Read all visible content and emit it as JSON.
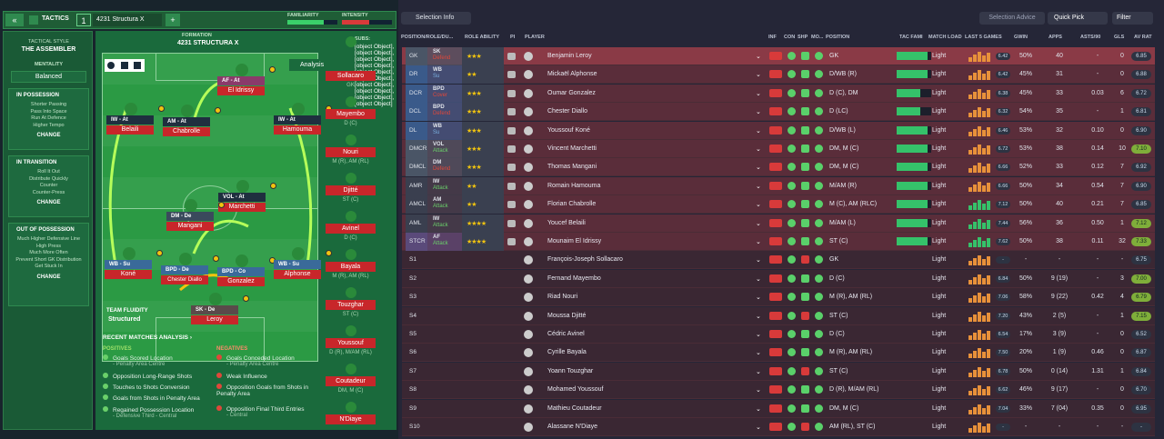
{
  "toolbar": {
    "back": "«",
    "tactics": "TACTICS",
    "slot": "1",
    "tactic_name": "4231 Structura X",
    "add": "+",
    "familiarity": "FAMILIARITY",
    "intensity": "INTENSITY"
  },
  "sidebar": {
    "style_label": "TACTICAL STYLE",
    "style": "THE ASSEMBLER",
    "mentality_label": "MENTALITY",
    "mentality": "Balanced",
    "in_possession": {
      "title": "IN POSSESSION",
      "items": [
        "Shorter Passing",
        "Pass Into Space",
        "Run At Defence",
        "Higher Tempo"
      ],
      "change": "CHANGE"
    },
    "in_transition": {
      "title": "IN TRANSITION",
      "items": [
        "Roll It Out",
        "Distribute Quickly",
        "Counter",
        "Counter-Press"
      ],
      "change": "CHANGE"
    },
    "out_of_possession": {
      "title": "OUT OF POSSESSION",
      "items": [
        "Much Higher Defensive Line",
        "High Press",
        "Much More Often",
        "Prevent Short GK Distribution",
        "Get Stuck In"
      ],
      "change": "CHANGE"
    }
  },
  "pitch": {
    "formation_label": "FORMATION",
    "formation": "4231 STRUCTURA X",
    "subs_label": "SUBS:",
    "subs": [
      {
        "name": "Sollacaro",
        "pos": "GK"
      },
      {
        "name": "Mayembo",
        "pos": "D (C)"
      },
      {
        "name": "Nouri",
        "pos": "M (R), AM (RL)"
      },
      {
        "name": "Djitté",
        "pos": "ST (C)"
      },
      {
        "name": "Avinel",
        "pos": "D (C)"
      },
      {
        "name": "Bayala",
        "pos": "M (R), AM (RL)"
      },
      {
        "name": "Touzghar",
        "pos": "ST (C)"
      },
      {
        "name": "Youssouf",
        "pos": "D (R), M/AM (RL)"
      },
      {
        "name": "Coutadeur",
        "pos": "DM, M (C)"
      },
      {
        "name": "N'Diaye",
        "pos": ""
      }
    ],
    "analysis": "Analysis",
    "fluidity_label": "TEAM FLUIDITY",
    "fluidity": "Structured",
    "players": [
      {
        "role": "AF - At",
        "name": "El Idrissy"
      },
      {
        "role": "IW - At",
        "name": "Belaili"
      },
      {
        "role": "AM - At",
        "name": "Chabrolle"
      },
      {
        "role": "IW - At",
        "name": "Hamouma"
      },
      {
        "role": "VOL - At",
        "name": "Marchetti"
      },
      {
        "role": "DM - De",
        "name": "Mangani"
      },
      {
        "role": "WB - Su",
        "name": "Koné"
      },
      {
        "role": "BPD - De",
        "name": "Chester Diallo"
      },
      {
        "role": "BPD - Co",
        "name": "Gonzalez"
      },
      {
        "role": "WB - Su",
        "name": "Alphonse"
      },
      {
        "role": "SK - De",
        "name": "Leroy"
      }
    ]
  },
  "recent": {
    "title": "RECENT MATCHES ANALYSIS ›",
    "positives_label": "POSITIVES",
    "negatives_label": "NEGATIVES",
    "positives": [
      {
        "t": "Goals Scored Location",
        "s": "- Penalty Area Centre"
      },
      {
        "t": "Opposition Long-Range Shots",
        "s": ""
      },
      {
        "t": "Touches to Shots Conversion",
        "s": ""
      },
      {
        "t": "Goals from Shots in Penalty Area",
        "s": ""
      },
      {
        "t": "Regained Possession Location",
        "s": "- Defensive Third - Central"
      }
    ],
    "negatives": [
      {
        "t": "Goals Conceded Location",
        "s": "- Penalty Area Centre"
      },
      {
        "t": "Weak Influence",
        "s": ""
      },
      {
        "t": "Opposition Goals from Shots in Penalty Area",
        "s": ""
      },
      {
        "t": "Opposition Final Third Entries",
        "s": "- Central"
      }
    ]
  },
  "right_toolbar": {
    "selection_info": "Selection Info",
    "selection_advice": "Selection Advice",
    "quick_pick": "Quick Pick",
    "filter": "Filter"
  },
  "headers": {
    "posrole": "POSITION/ROLE/DU...",
    "role_ability": "ROLE ABILITY",
    "pi": "PI",
    "player": "PLAYER",
    "inf": "INF",
    "con": "CON",
    "shp": "SHP",
    "mo": "MO...",
    "position": "POSITION",
    "tac_fam": "TAC FAMI",
    "match_load": "MATCH LOAD",
    "last5": "LAST 5 GAMES",
    "gwin": "GWIN",
    "apps": "APPS",
    "asts90": "ASTS/90",
    "gls": "GLS",
    "avrat": "AV RAT"
  },
  "rows": [
    {
      "slot": "GK",
      "role": "SK",
      "duty": "Defend",
      "stars": "★★★",
      "name": "Benjamin Leroy",
      "pos": "GK",
      "load": "Light",
      "f": "6.42",
      "gwin": "50%",
      "apps": "40",
      "asts": "-",
      "gls": "0",
      "av": "6.85",
      "av_g": false
    },
    {
      "slot": "DR",
      "role": "WB",
      "duty": "Su",
      "stars": "★★",
      "name": "Mickaël Alphonse",
      "pos": "D/WB (R)",
      "load": "Light",
      "f": "6.42",
      "gwin": "45%",
      "apps": "31",
      "asts": "-",
      "gls": "0",
      "av": "6.88",
      "av_g": false
    },
    {
      "slot": "DCR",
      "role": "BPD",
      "duty": "Cover",
      "stars": "★★★",
      "name": "Oumar Gonzalez",
      "pos": "D (C), DM",
      "load": "Light",
      "f": "6.38",
      "gwin": "45%",
      "apps": "33",
      "asts": "0.03",
      "gls": "6",
      "av": "6.72",
      "av_g": false
    },
    {
      "slot": "DCL",
      "role": "BPD",
      "duty": "Defend",
      "stars": "★★★",
      "name": "Chester Diallo",
      "pos": "D (LC)",
      "load": "Light",
      "f": "6.32",
      "gwin": "54%",
      "apps": "35",
      "asts": "-",
      "gls": "1",
      "av": "6.81",
      "av_g": false
    },
    {
      "slot": "DL",
      "role": "WB",
      "duty": "Su",
      "stars": "★★★",
      "name": "Youssouf Koné",
      "pos": "D/WB (L)",
      "load": "Light",
      "f": "6.46",
      "gwin": "53%",
      "apps": "32",
      "asts": "0.10",
      "gls": "0",
      "av": "6.90",
      "av_g": false
    },
    {
      "slot": "DMCR",
      "role": "VOL",
      "duty": "Attack",
      "stars": "★★★",
      "name": "Vincent Marchetti",
      "pos": "DM, M (C)",
      "load": "Light",
      "f": "6.72",
      "gwin": "53%",
      "apps": "38",
      "asts": "0.14",
      "gls": "10",
      "av": "7.10",
      "av_g": true
    },
    {
      "slot": "DMCL",
      "role": "DM",
      "duty": "Defend",
      "stars": "★★★",
      "name": "Thomas Mangani",
      "pos": "DM, M (C)",
      "load": "Light",
      "f": "6.66",
      "gwin": "52%",
      "apps": "33",
      "asts": "0.12",
      "gls": "7",
      "av": "6.92",
      "av_g": false
    },
    {
      "slot": "AMR",
      "role": "IW",
      "duty": "Attack",
      "stars": "★★",
      "name": "Romain Hamouma",
      "pos": "M/AM (R)",
      "load": "Light",
      "f": "6.66",
      "gwin": "50%",
      "apps": "34",
      "asts": "0.54",
      "gls": "7",
      "av": "6.90",
      "av_g": false
    },
    {
      "slot": "AMCL",
      "role": "AM",
      "duty": "Attack",
      "stars": "★★",
      "name": "Florian Chabrolle",
      "pos": "M (C), AM (RLC)",
      "load": "Light",
      "f": "7.12",
      "gwin": "50%",
      "apps": "40",
      "asts": "0.21",
      "gls": "7",
      "av": "6.85",
      "av_g": false
    },
    {
      "slot": "AML",
      "role": "IW",
      "duty": "Attack",
      "stars": "★★★★",
      "name": "Youcef Belaili",
      "pos": "M/AM (L)",
      "load": "Light",
      "f": "7.44",
      "gwin": "56%",
      "apps": "36",
      "asts": "0.50",
      "gls": "1",
      "av": "7.12",
      "av_g": true
    },
    {
      "slot": "STCR",
      "role": "AF",
      "duty": "Attack",
      "stars": "★★★★",
      "name": "Mounaim El Idrissy",
      "pos": "ST (C)",
      "load": "Light",
      "f": "7.62",
      "gwin": "50%",
      "apps": "38",
      "asts": "0.11",
      "gls": "32",
      "av": "7.33",
      "av_g": true
    },
    {
      "slot": "S1",
      "role": "",
      "duty": "",
      "stars": "",
      "name": "François-Joseph Sollacaro",
      "pos": "GK",
      "load": "Light",
      "f": "-",
      "gwin": "-",
      "apps": "-",
      "asts": "-",
      "gls": "-",
      "av": "6.75",
      "av_g": false
    },
    {
      "slot": "S2",
      "role": "",
      "duty": "",
      "stars": "",
      "name": "Fernand Mayembo",
      "pos": "D (C)",
      "load": "Light",
      "f": "6.84",
      "gwin": "50%",
      "apps": "9 (19)",
      "asts": "-",
      "gls": "3",
      "av": "7.00",
      "av_g": true
    },
    {
      "slot": "S3",
      "role": "",
      "duty": "",
      "stars": "",
      "name": "Riad Nouri",
      "pos": "M (R), AM (RL)",
      "load": "Light",
      "f": "7.06",
      "gwin": "58%",
      "apps": "9 (22)",
      "asts": "0.42",
      "gls": "4",
      "av": "6.79",
      "av_g": true
    },
    {
      "slot": "S4",
      "role": "",
      "duty": "",
      "stars": "",
      "name": "Moussa Djitté",
      "pos": "ST (C)",
      "load": "Light",
      "f": "7.20",
      "gwin": "43%",
      "apps": "2 (5)",
      "asts": "-",
      "gls": "1",
      "av": "7.15",
      "av_g": true
    },
    {
      "slot": "S5",
      "role": "",
      "duty": "",
      "stars": "",
      "name": "Cédric Avinel",
      "pos": "D (C)",
      "load": "Light",
      "f": "6.54",
      "gwin": "17%",
      "apps": "3 (9)",
      "asts": "-",
      "gls": "0",
      "av": "6.52",
      "av_g": false
    },
    {
      "slot": "S6",
      "role": "",
      "duty": "",
      "stars": "",
      "name": "Cyrille Bayala",
      "pos": "M (R), AM (RL)",
      "load": "Light",
      "f": "7.50",
      "gwin": "20%",
      "apps": "1 (9)",
      "asts": "0.46",
      "gls": "0",
      "av": "6.87",
      "av_g": false
    },
    {
      "slot": "S7",
      "role": "",
      "duty": "",
      "stars": "",
      "name": "Yoann Touzghar",
      "pos": "ST (C)",
      "load": "Light",
      "f": "6.78",
      "gwin": "50%",
      "apps": "0 (14)",
      "asts": "1.31",
      "gls": "1",
      "av": "6.84",
      "av_g": false
    },
    {
      "slot": "S8",
      "role": "",
      "duty": "",
      "stars": "",
      "name": "Mohamed Youssouf",
      "pos": "D (R), M/AM (RL)",
      "load": "Light",
      "f": "6.62",
      "gwin": "46%",
      "apps": "9 (17)",
      "asts": "-",
      "gls": "0",
      "av": "6.70",
      "av_g": false
    },
    {
      "slot": "S9",
      "role": "",
      "duty": "",
      "stars": "",
      "name": "Mathieu Coutadeur",
      "pos": "DM, M (C)",
      "load": "Light",
      "f": "7.04",
      "gwin": "33%",
      "apps": "7 (04)",
      "asts": "0.35",
      "gls": "0",
      "av": "6.95",
      "av_g": false
    },
    {
      "slot": "S10",
      "role": "",
      "duty": "",
      "stars": "",
      "name": "Alassane N'Diaye",
      "pos": "AM (RL), ST (C)",
      "load": "Light",
      "f": "-",
      "gwin": "-",
      "apps": "-",
      "asts": "-",
      "gls": "-",
      "av": "-",
      "av_g": false
    }
  ]
}
